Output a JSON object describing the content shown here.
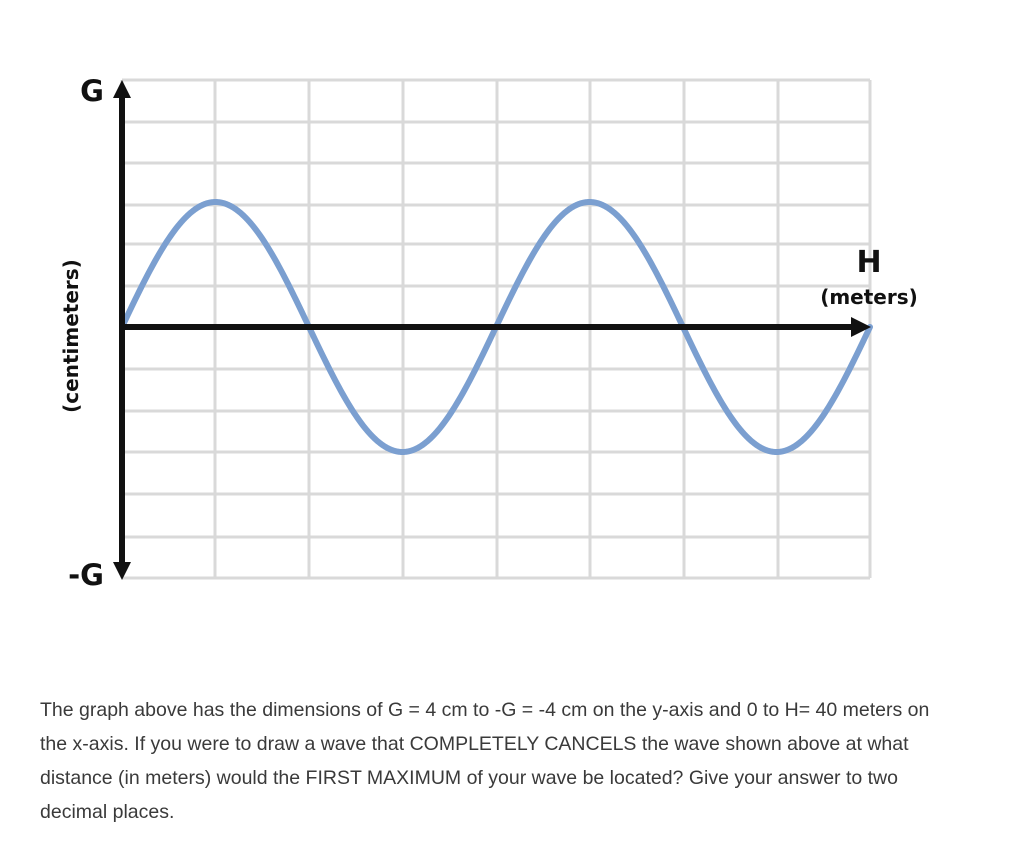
{
  "chart_data": {
    "type": "line",
    "y_axis": {
      "top_label": "G",
      "bottom_label": "-G",
      "unit_label": "(centimeters)"
    },
    "x_axis": {
      "label": "H",
      "unit_label": "(meters)"
    },
    "grid": true,
    "colors": {
      "wave": "#7b9fd0",
      "grid": "#d9d9d9",
      "axes": "#111111"
    },
    "series": [
      {
        "shape": "sine",
        "amplitude": 3,
        "cycles": 2,
        "phase_start": "zero-rising",
        "x_range": [
          0,
          8
        ],
        "y_range": [
          -6,
          6
        ]
      }
    ]
  },
  "question": {
    "text": "The graph above has the dimensions of G = 4 cm to -G = -4 cm on the y-axis and 0 to H= 40 meters on the x-axis.    If you were to draw a wave that COMPLETELY CANCELS the wave shown above at what distance (in meters) would the FIRST MAXIMUM of your wave be located?  Give your answer to two decimal places."
  }
}
